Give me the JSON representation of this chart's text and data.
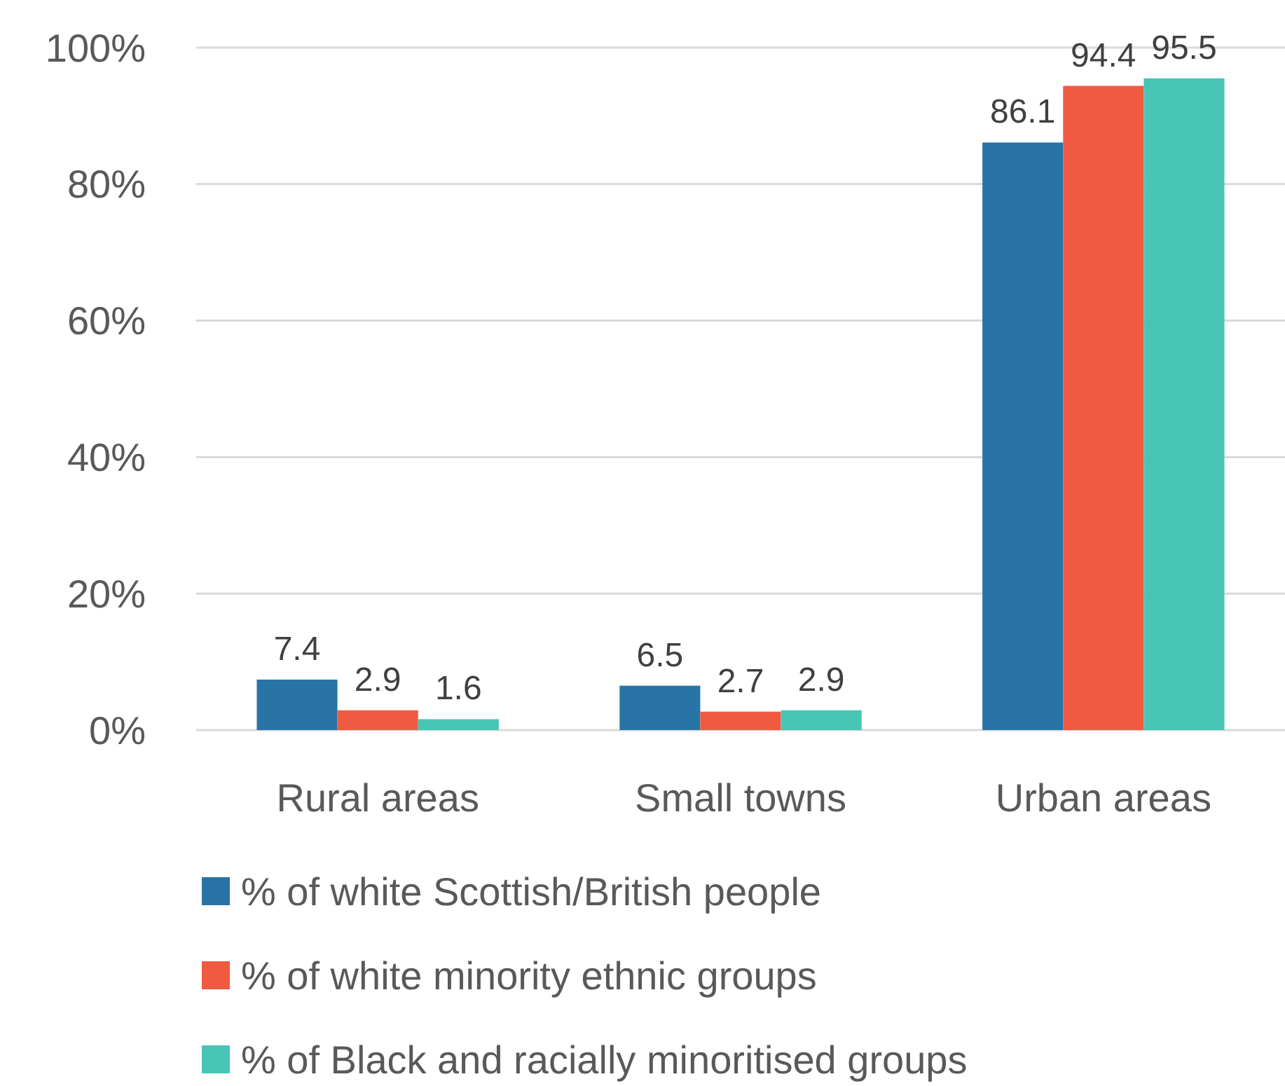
{
  "chart_data": {
    "type": "bar",
    "categories": [
      "Rural areas",
      "Small towns",
      "Urban areas"
    ],
    "series": [
      {
        "name": "% of white Scottish/British people",
        "color": "#2874a6",
        "values": [
          7.4,
          6.5,
          86.1
        ]
      },
      {
        "name": "% of white minority ethnic groups",
        "color": "#ef5a41",
        "values": [
          2.9,
          2.7,
          94.4
        ]
      },
      {
        "name": "% of Black and racially minoritised groups",
        "color": "#48c5b5",
        "values": [
          1.6,
          2.9,
          95.5
        ]
      }
    ],
    "ylim": [
      0,
      100
    ],
    "yticks": [
      {
        "value": 0,
        "label": "0%"
      },
      {
        "value": 20,
        "label": "20%"
      },
      {
        "value": 40,
        "label": "40%"
      },
      {
        "value": 60,
        "label": "60%"
      },
      {
        "value": 80,
        "label": "80%"
      },
      {
        "value": 100,
        "label": "100%"
      }
    ],
    "grid": "y",
    "legend": "bottom",
    "data_labels": true
  }
}
